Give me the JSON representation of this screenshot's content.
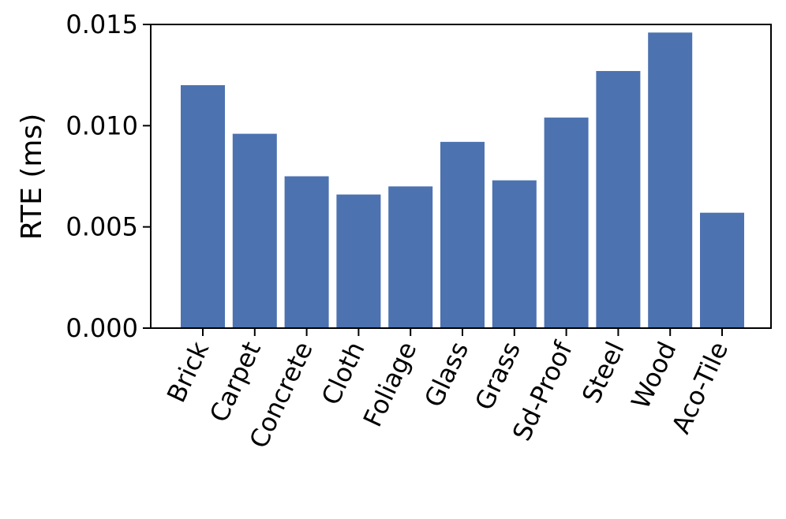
{
  "chart_data": {
    "type": "bar",
    "title": "",
    "xlabel": "",
    "ylabel": "RTE (ms)",
    "categories": [
      "Brick",
      "Carpet",
      "Concrete",
      "Cloth",
      "Foliage",
      "Glass",
      "Grass",
      "Sd-Proof",
      "Steel",
      "Wood",
      "Aco-Tile"
    ],
    "values": [
      0.012,
      0.0096,
      0.0075,
      0.0066,
      0.007,
      0.0092,
      0.0073,
      0.0104,
      0.0127,
      0.0146,
      0.0057
    ],
    "ylim": [
      0,
      0.015
    ],
    "yticks": [
      "0.000",
      "0.005",
      "0.010",
      "0.015"
    ],
    "grid": false,
    "bar_color": "#4c72b0"
  }
}
